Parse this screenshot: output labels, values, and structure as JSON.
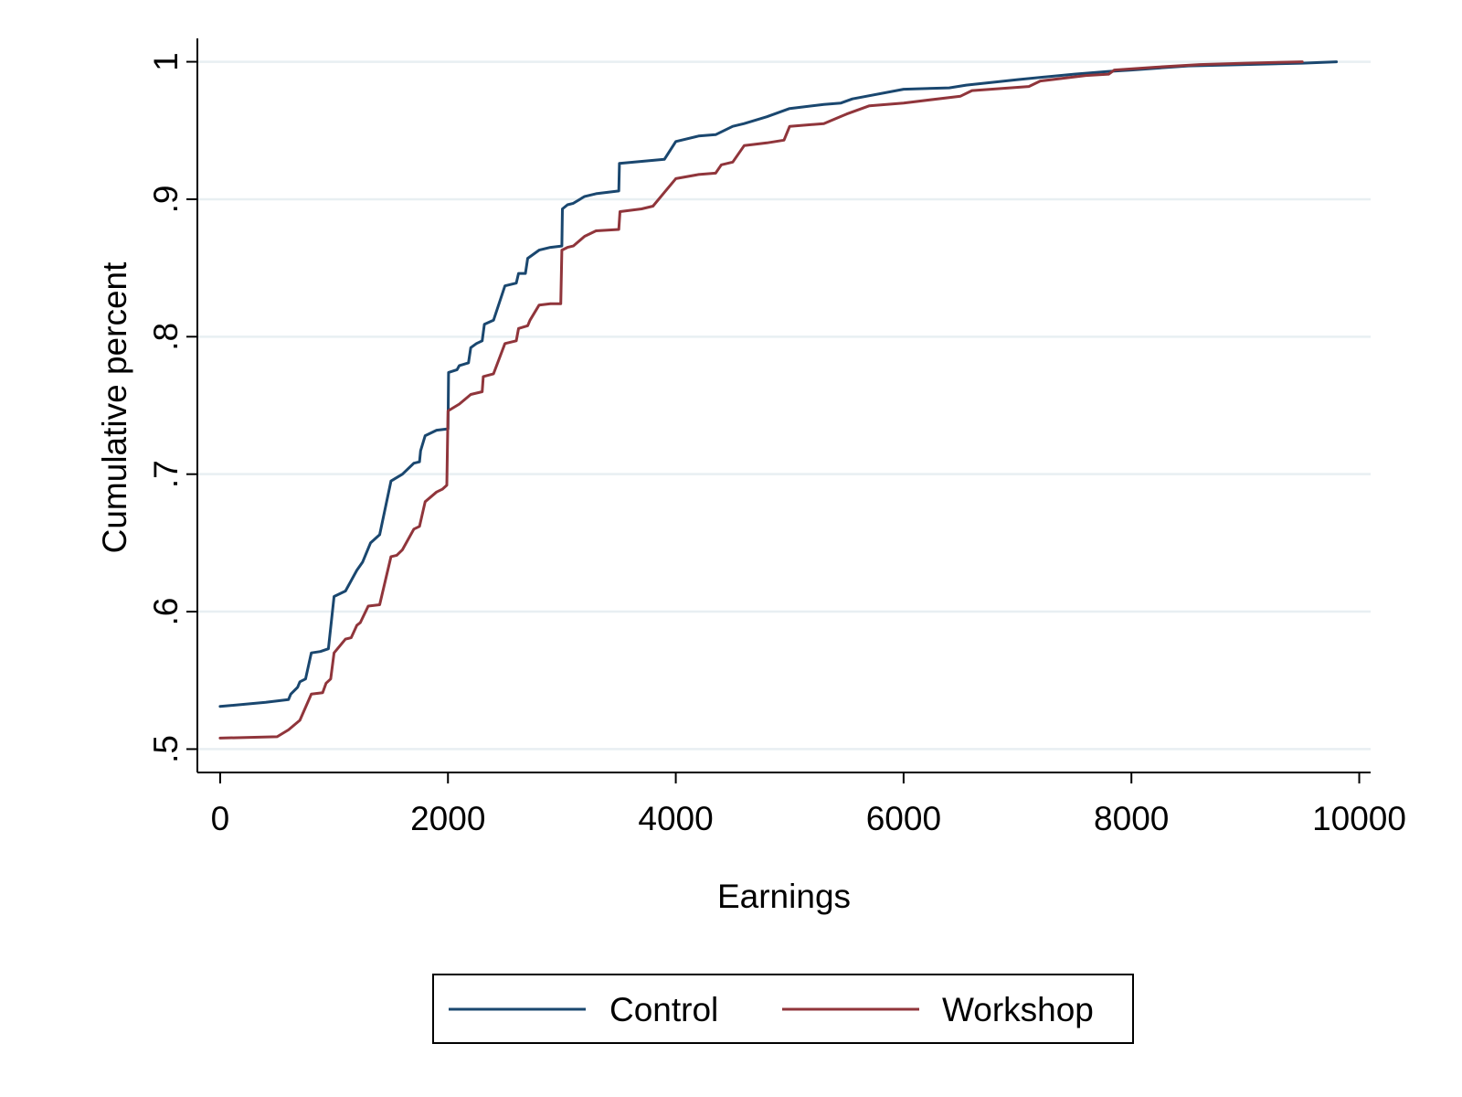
{
  "chart_data": {
    "type": "line",
    "title": "",
    "xlabel": "Earnings",
    "ylabel": "Cumulative percent",
    "xlim": [
      -200,
      10100
    ],
    "ylim": [
      0.483,
      1.017
    ],
    "x_ticks": [
      0,
      2000,
      4000,
      6000,
      8000,
      10000
    ],
    "x_tick_labels": [
      "0",
      "2000",
      "4000",
      "6000",
      "8000",
      "10000"
    ],
    "y_ticks": [
      0.5,
      0.6,
      0.7,
      0.8,
      0.9,
      1.0
    ],
    "y_tick_labels": [
      ".5",
      ".6",
      ".7",
      ".8",
      ".9",
      "1"
    ],
    "grid": true,
    "legend_position": "bottom",
    "series": [
      {
        "name": "Control",
        "color": "#1a476f",
        "points": [
          [
            0,
            0.531
          ],
          [
            400,
            0.534
          ],
          [
            600,
            0.536
          ],
          [
            620,
            0.54
          ],
          [
            680,
            0.545
          ],
          [
            700,
            0.549
          ],
          [
            750,
            0.551
          ],
          [
            800,
            0.57
          ],
          [
            880,
            0.571
          ],
          [
            950,
            0.573
          ],
          [
            1000,
            0.611
          ],
          [
            1100,
            0.615
          ],
          [
            1200,
            0.63
          ],
          [
            1250,
            0.636
          ],
          [
            1300,
            0.646
          ],
          [
            1320,
            0.65
          ],
          [
            1400,
            0.656
          ],
          [
            1500,
            0.695
          ],
          [
            1600,
            0.7
          ],
          [
            1700,
            0.708
          ],
          [
            1750,
            0.709
          ],
          [
            1760,
            0.717
          ],
          [
            1800,
            0.728
          ],
          [
            1900,
            0.732
          ],
          [
            2000,
            0.733
          ],
          [
            2005,
            0.774
          ],
          [
            2080,
            0.776
          ],
          [
            2100,
            0.779
          ],
          [
            2180,
            0.781
          ],
          [
            2200,
            0.792
          ],
          [
            2250,
            0.795
          ],
          [
            2300,
            0.797
          ],
          [
            2320,
            0.809
          ],
          [
            2400,
            0.812
          ],
          [
            2500,
            0.837
          ],
          [
            2600,
            0.839
          ],
          [
            2620,
            0.846
          ],
          [
            2680,
            0.846
          ],
          [
            2700,
            0.857
          ],
          [
            2800,
            0.863
          ],
          [
            2900,
            0.865
          ],
          [
            3000,
            0.866
          ],
          [
            3005,
            0.893
          ],
          [
            3050,
            0.896
          ],
          [
            3100,
            0.897
          ],
          [
            3200,
            0.902
          ],
          [
            3300,
            0.904
          ],
          [
            3500,
            0.906
          ],
          [
            3505,
            0.926
          ],
          [
            3900,
            0.929
          ],
          [
            4000,
            0.942
          ],
          [
            4200,
            0.946
          ],
          [
            4350,
            0.947
          ],
          [
            4500,
            0.953
          ],
          [
            4600,
            0.955
          ],
          [
            4800,
            0.96
          ],
          [
            5000,
            0.966
          ],
          [
            5300,
            0.969
          ],
          [
            5450,
            0.97
          ],
          [
            5550,
            0.973
          ],
          [
            6000,
            0.98
          ],
          [
            6400,
            0.981
          ],
          [
            6550,
            0.983
          ],
          [
            7000,
            0.987
          ],
          [
            7500,
            0.991
          ],
          [
            7800,
            0.993
          ],
          [
            8000,
            0.994
          ],
          [
            8500,
            0.997
          ],
          [
            9000,
            0.998
          ],
          [
            9500,
            0.999
          ],
          [
            9800,
            1.0
          ]
        ]
      },
      {
        "name": "Workshop",
        "color": "#90353b",
        "points": [
          [
            0,
            0.508
          ],
          [
            500,
            0.509
          ],
          [
            600,
            0.514
          ],
          [
            700,
            0.521
          ],
          [
            800,
            0.54
          ],
          [
            900,
            0.541
          ],
          [
            930,
            0.548
          ],
          [
            970,
            0.551
          ],
          [
            1000,
            0.57
          ],
          [
            1100,
            0.58
          ],
          [
            1150,
            0.581
          ],
          [
            1200,
            0.59
          ],
          [
            1230,
            0.592
          ],
          [
            1300,
            0.604
          ],
          [
            1400,
            0.605
          ],
          [
            1500,
            0.64
          ],
          [
            1550,
            0.641
          ],
          [
            1600,
            0.645
          ],
          [
            1700,
            0.66
          ],
          [
            1750,
            0.662
          ],
          [
            1800,
            0.68
          ],
          [
            1900,
            0.687
          ],
          [
            1950,
            0.689
          ],
          [
            1990,
            0.692
          ],
          [
            2000,
            0.746
          ],
          [
            2100,
            0.751
          ],
          [
            2200,
            0.758
          ],
          [
            2300,
            0.76
          ],
          [
            2310,
            0.771
          ],
          [
            2400,
            0.773
          ],
          [
            2500,
            0.795
          ],
          [
            2600,
            0.797
          ],
          [
            2620,
            0.806
          ],
          [
            2700,
            0.808
          ],
          [
            2720,
            0.812
          ],
          [
            2800,
            0.823
          ],
          [
            2900,
            0.824
          ],
          [
            2990,
            0.824
          ],
          [
            3000,
            0.863
          ],
          [
            3050,
            0.865
          ],
          [
            3100,
            0.866
          ],
          [
            3200,
            0.873
          ],
          [
            3300,
            0.877
          ],
          [
            3500,
            0.878
          ],
          [
            3510,
            0.891
          ],
          [
            3700,
            0.893
          ],
          [
            3800,
            0.895
          ],
          [
            3900,
            0.905
          ],
          [
            4000,
            0.915
          ],
          [
            4200,
            0.918
          ],
          [
            4350,
            0.919
          ],
          [
            4400,
            0.925
          ],
          [
            4500,
            0.927
          ],
          [
            4600,
            0.939
          ],
          [
            4800,
            0.941
          ],
          [
            4950,
            0.943
          ],
          [
            5000,
            0.953
          ],
          [
            5300,
            0.955
          ],
          [
            5500,
            0.962
          ],
          [
            5700,
            0.968
          ],
          [
            6000,
            0.97
          ],
          [
            6500,
            0.975
          ],
          [
            6600,
            0.979
          ],
          [
            7100,
            0.982
          ],
          [
            7200,
            0.986
          ],
          [
            7600,
            0.99
          ],
          [
            7800,
            0.991
          ],
          [
            7850,
            0.994
          ],
          [
            8200,
            0.996
          ],
          [
            8600,
            0.998
          ],
          [
            9000,
            0.999
          ],
          [
            9500,
            1.0
          ]
        ]
      }
    ]
  }
}
